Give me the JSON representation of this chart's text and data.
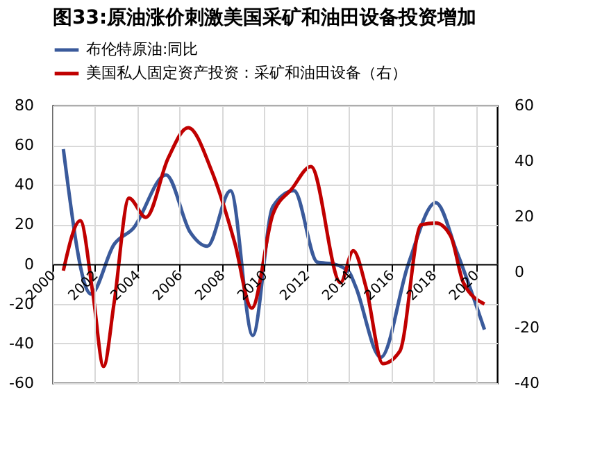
{
  "chart_data": {
    "type": "line",
    "title": "图33:原油涨价刺激美国采矿和油田设备投资增加",
    "xlim": [
      2000,
      2021
    ],
    "xticks": [
      2000,
      2002,
      2004,
      2006,
      2008,
      2010,
      2012,
      2014,
      2016,
      2018,
      2020
    ],
    "ylim": [
      -60,
      80
    ],
    "yticks": [
      -60,
      -40,
      -20,
      0,
      20,
      40,
      60,
      80
    ],
    "y2lim": [
      -40,
      60
    ],
    "y2ticks": [
      -40,
      -20,
      0,
      20,
      40,
      60
    ],
    "grid": true,
    "legend": "top",
    "series": [
      {
        "name": "布伦特原油:同比",
        "color": "#3a5a9b",
        "x": [
          2000.5,
          2001.8,
          2002.9,
          2003.8,
          2005.35,
          2006.5,
          2007.3,
          2008.4,
          2009.45,
          2010.4,
          2011.4,
          2012.5,
          2013.3,
          2014.0,
          2014.3,
          2015.5,
          2016.8,
          2018.1,
          2019.1,
          2020.4
        ],
        "values": [
          58,
          -15,
          10,
          18,
          45,
          16,
          9,
          37,
          -36,
          29,
          37,
          1,
          0,
          -4,
          -11,
          -47,
          0,
          31,
          6,
          -33
        ]
      },
      {
        "name": "美国私人固定资产投资：采矿和油田设备（右）",
        "color": "#c00000",
        "axis": "y2",
        "x": [
          2000.5,
          2001.3,
          2001.9,
          2002.4,
          2002.9,
          2003.6,
          2004.4,
          2005.45,
          2006.4,
          2007.5,
          2008.6,
          2009.4,
          2010.4,
          2011.3,
          2012.2,
          2013.6,
          2014.2,
          2014.8,
          2015.6,
          2016.4,
          2017.4,
          2018.1,
          2018.8,
          2019.4,
          2020.4
        ],
        "values": [
          0.5,
          18.5,
          -8,
          -34,
          -11,
          26.6,
          19.7,
          41,
          52,
          36.6,
          10.5,
          -13,
          20.8,
          30,
          38,
          -3.8,
          7.7,
          -5.4,
          -33,
          -28.5,
          17,
          17.7,
          13,
          -3.8,
          -11.5
        ]
      }
    ]
  }
}
